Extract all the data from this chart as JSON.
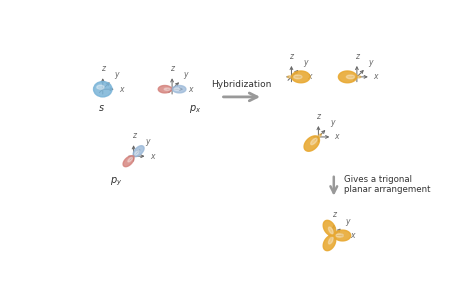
{
  "bg_color": "#ffffff",
  "s_color": "#7ab4d8",
  "px_red": "#d4807a",
  "px_blue": "#9ab8d8",
  "py_blue": "#9ab8d8",
  "py_red": "#d4807a",
  "hybrid_color": "#e8a830",
  "axis_color": "#666666",
  "arrow_color": "#999999",
  "text_color": "#333333",
  "hybridization_label": "Hybridization",
  "gives_label": "Gives a trigonal\nplanar arrangement",
  "s_label": "s",
  "px_label": "$p_x$",
  "py_label": "$p_y$",
  "lobe_cos_power": 1.5,
  "hybrid_cos_power": 1.2,
  "fig_w": 4.74,
  "fig_h": 3.07,
  "dpi": 100
}
